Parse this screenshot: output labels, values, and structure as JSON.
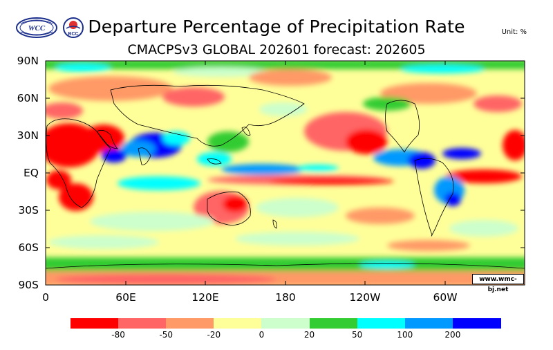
{
  "header": {
    "title": "Departure Percentage of Precipitation Rate",
    "subtitle": "CMACPSv3 GLOBAL 202601 forecast: 202605",
    "unit": "Unit: %"
  },
  "logos": {
    "left_text": "WCC",
    "right_text": "BCC"
  },
  "map": {
    "lat_labels": [
      "90N",
      "60N",
      "30N",
      "EQ",
      "30S",
      "60S",
      "90S"
    ],
    "lon_labels": [
      "0",
      "60E",
      "120E",
      "180",
      "120W",
      "60W"
    ],
    "watermark": "www.wmc-bj.net"
  },
  "colorbar": {
    "colors": [
      "#ff0000",
      "#ff6565",
      "#ff9966",
      "#ffff99",
      "#ccffcc",
      "#33cc33",
      "#00ffff",
      "#0099ff",
      "#0000ff"
    ],
    "labels": [
      "-80",
      "-50",
      "-20",
      "0",
      "20",
      "50",
      "100",
      "200"
    ]
  },
  "colors": {
    "coastline": "#000000",
    "border": "#000000"
  }
}
